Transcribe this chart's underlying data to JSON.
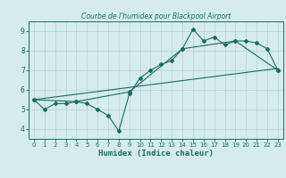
{
  "title": "Courbe de l'humidex pour Blackpool Airport",
  "xlabel": "Humidex (Indice chaleur)",
  "bg_color": "#d5ecea",
  "grid_color": "#b8d8d5",
  "line_color": "#1a6b60",
  "xlim": [
    -0.5,
    23.5
  ],
  "ylim": [
    3.5,
    9.5
  ],
  "xticks": [
    0,
    1,
    2,
    3,
    4,
    5,
    6,
    7,
    8,
    9,
    10,
    11,
    12,
    13,
    14,
    15,
    16,
    17,
    18,
    19,
    20,
    21,
    22,
    23
  ],
  "yticks": [
    4,
    5,
    6,
    7,
    8,
    9
  ],
  "line1_x": [
    0,
    1,
    2,
    3,
    4,
    5,
    6,
    7,
    8,
    9,
    10,
    11,
    12,
    13,
    14,
    15,
    16,
    17,
    18,
    19,
    20,
    21,
    22,
    23
  ],
  "line1_y": [
    5.5,
    5.0,
    5.3,
    5.3,
    5.4,
    5.3,
    5.0,
    4.7,
    3.9,
    5.8,
    6.6,
    7.0,
    7.3,
    7.5,
    8.1,
    9.1,
    8.5,
    8.7,
    8.3,
    8.5,
    8.5,
    8.4,
    8.1,
    7.0
  ],
  "line2_x": [
    0,
    4,
    9,
    14,
    19,
    23
  ],
  "line2_y": [
    5.5,
    5.4,
    5.9,
    8.1,
    8.5,
    7.0
  ],
  "line3_x": [
    0,
    23
  ],
  "line3_y": [
    5.5,
    7.1
  ],
  "tick_fontsize": 5.0,
  "xlabel_fontsize": 6.5,
  "title_fontsize": 5.5,
  "lw": 0.8,
  "ms": 2.0
}
